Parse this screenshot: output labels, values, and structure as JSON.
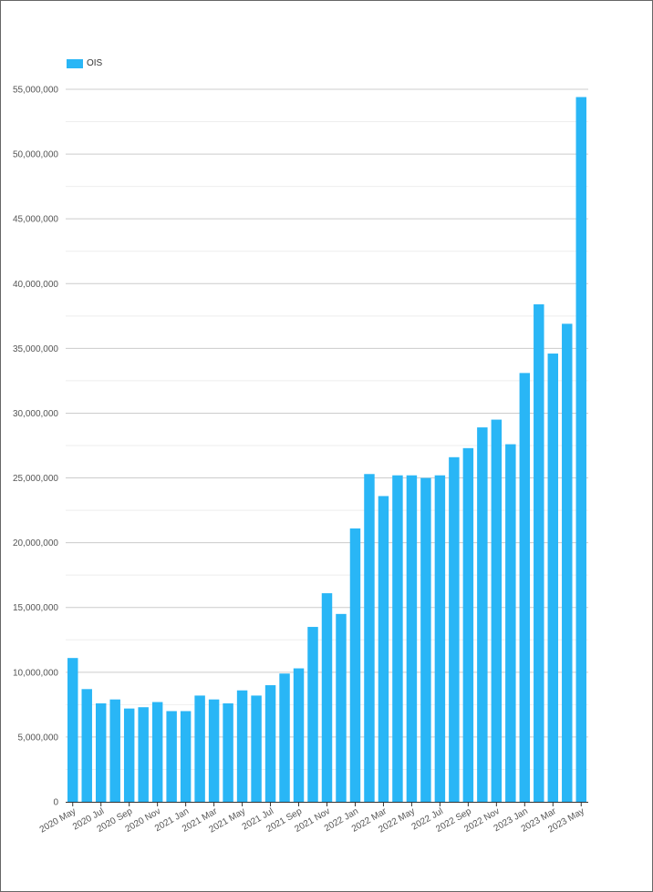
{
  "legend": {
    "label": "OIS",
    "color": "#29b6f6"
  },
  "chart_data": {
    "type": "bar",
    "title": "",
    "xlabel": "",
    "ylabel": "",
    "ylim": [
      0,
      55000000
    ],
    "grid": true,
    "legend_position": "top-left",
    "y_ticks": [
      {
        "value": 0,
        "label": "0"
      },
      {
        "value": 5000000,
        "label": "5,000,000"
      },
      {
        "value": 10000000,
        "label": "10,000,000"
      },
      {
        "value": 15000000,
        "label": "15,000,000"
      },
      {
        "value": 20000000,
        "label": "20,000,000"
      },
      {
        "value": 25000000,
        "label": "25,000,000"
      },
      {
        "value": 30000000,
        "label": "30,000,000"
      },
      {
        "value": 35000000,
        "label": "35,000,000"
      },
      {
        "value": 40000000,
        "label": "40,000,000"
      },
      {
        "value": 45000000,
        "label": "45,000,000"
      },
      {
        "value": 50000000,
        "label": "50,000,000"
      },
      {
        "value": 55000000,
        "label": "55,000,000"
      }
    ],
    "categories": [
      "2020 May",
      "2020 Jun",
      "2020 Jul",
      "2020 Aug",
      "2020 Sep",
      "2020 Oct",
      "2020 Nov",
      "2020 Dec",
      "2021 Jan",
      "2021 Feb",
      "2021 Mar",
      "2021 Apr",
      "2021 May",
      "2021 Jun",
      "2021 Jul",
      "2021 Aug",
      "2021 Sep",
      "2021 Oct",
      "2021 Nov",
      "2021 Dec",
      "2022 Jan",
      "2022 Feb",
      "2022 Mar",
      "2022 Apr",
      "2022 May",
      "2022 Jun",
      "2022 Jul",
      "2022 Aug",
      "2022 Sep",
      "2022 Oct",
      "2022 Nov",
      "2022 Dec",
      "2023 Jan",
      "2023 Feb",
      "2023 Mar",
      "2023 Apr",
      "2023 May"
    ],
    "x_tick_labels": [
      "2020 May",
      "2020 Jul",
      "2020 Sep",
      "2020 Nov",
      "2021 Jan",
      "2021 Mar",
      "2021 May",
      "2021 Jul",
      "2021 Sep",
      "2021 Nov",
      "2022 Jan",
      "2022 Mar",
      "2022 May",
      "2022 Jul",
      "2022 Sep",
      "2022 Nov",
      "2023 Jan",
      "2023 Mar",
      "2023 May"
    ],
    "series": [
      {
        "name": "OIS",
        "color": "#29b6f6",
        "values": [
          11100000,
          8700000,
          7600000,
          7900000,
          7200000,
          7300000,
          7700000,
          7000000,
          7000000,
          8200000,
          7900000,
          7600000,
          8600000,
          8200000,
          9000000,
          9900000,
          10300000,
          13500000,
          16100000,
          14500000,
          21100000,
          25300000,
          23600000,
          25200000,
          25200000,
          25000000,
          25200000,
          26600000,
          27300000,
          28900000,
          29500000,
          27600000,
          33100000,
          38400000,
          34600000,
          36900000,
          54400000
        ]
      }
    ]
  }
}
